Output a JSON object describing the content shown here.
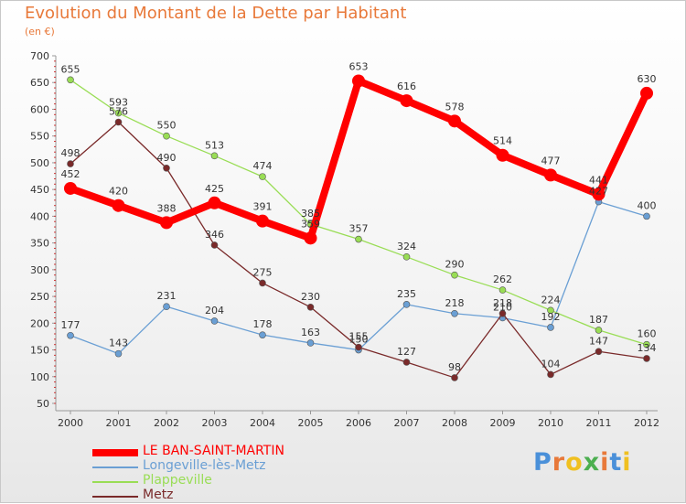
{
  "title": "Evolution du Montant de la Dette par Habitant",
  "subtitle": "(en €)",
  "logo_letters": [
    "P",
    "r",
    "o",
    "x",
    "i",
    "t",
    "i"
  ],
  "logo_colors": [
    "#4a90d9",
    "#e8793a",
    "#f0c020",
    "#4caf50",
    "#e8793a",
    "#4a90d9",
    "#f0c020"
  ],
  "chart_data": {
    "type": "line",
    "title": "Evolution du Montant de la Dette par Habitant",
    "subtitle": "(en €)",
    "x": [
      "2000",
      "2001",
      "2002",
      "2003",
      "2004",
      "2005",
      "2006",
      "2007",
      "2008",
      "2009",
      "2010",
      "2011",
      "2012"
    ],
    "ylim": [
      50,
      700
    ],
    "yticks": [
      50,
      100,
      150,
      200,
      250,
      300,
      350,
      400,
      450,
      500,
      550,
      600,
      650,
      700
    ],
    "grid": false,
    "legend_position": "bottom-left",
    "series": [
      {
        "name": "LE BAN-SAINT-MARTIN",
        "color": "#ff0000",
        "values": [
          452,
          420,
          388,
          425,
          391,
          359,
          653,
          616,
          578,
          514,
          477,
          441,
          630
        ],
        "labels": [
          "452",
          "420",
          "388",
          "425",
          "391",
          "359",
          "653",
          "616",
          "578",
          "514",
          "477",
          "441",
          "630"
        ]
      },
      {
        "name": "Longeville-lès-Metz",
        "color": "#6a9fd4",
        "values": [
          177,
          143,
          231,
          204,
          178,
          163,
          150,
          235,
          218,
          210,
          192,
          427,
          400
        ],
        "labels": [
          "177",
          "143",
          "231",
          "204",
          "178",
          "163",
          "150",
          "235",
          "218",
          "210",
          "192",
          "427",
          "400"
        ]
      },
      {
        "name": "Plappeville",
        "color": "#99dd55",
        "values": [
          655,
          593,
          550,
          513,
          474,
          385,
          357,
          324,
          290,
          262,
          224,
          187,
          160
        ],
        "labels": [
          "655",
          "593",
          "550",
          "513",
          "474",
          "385",
          "357",
          "324",
          "290",
          "262",
          "224",
          "187",
          "160"
        ]
      },
      {
        "name": "Metz",
        "color": "#7a2a2a",
        "values": [
          498,
          576,
          490,
          346,
          275,
          230,
          155,
          127,
          98,
          218,
          104,
          147,
          134
        ],
        "labels": [
          "498",
          "576",
          "490",
          "346",
          "275",
          "230",
          "155",
          "127",
          "98",
          "218",
          "104",
          "147",
          "134"
        ]
      }
    ]
  }
}
